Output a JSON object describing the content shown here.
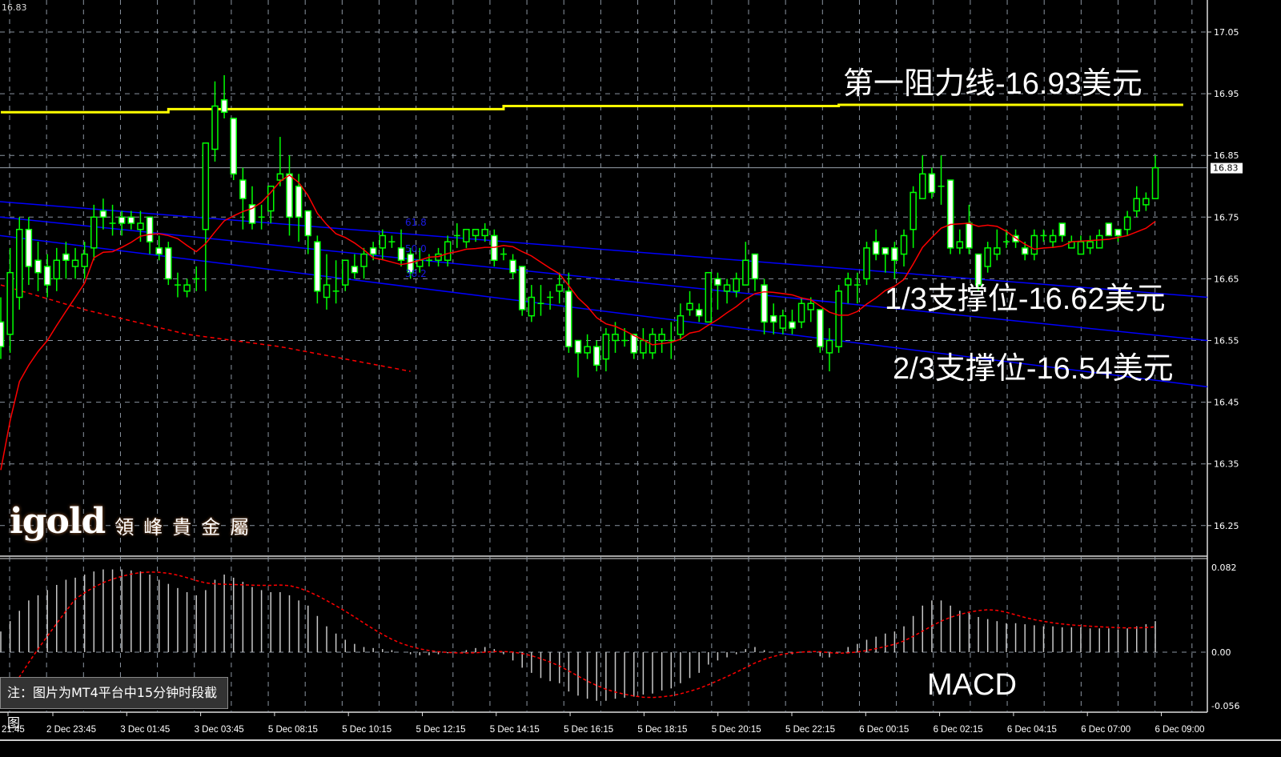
{
  "top_left_price": "16.83",
  "colors": {
    "background": "#000000",
    "candle": "#00ff00",
    "bear_fill": "#ffffff",
    "ma": "#ff0000",
    "channel": "#0000ff",
    "resistance": "#ffff00",
    "grid": "#8a94a0"
  },
  "annotations": {
    "resistance": "第一阻力线-16.93美元",
    "support1": "1/3支撑位-16.62美元",
    "support2": "2/3支撑位-16.54美元",
    "indicator": "MACD"
  },
  "note": "注：图片为MT4平台中15分钟时段截图",
  "logo": {
    "main": "igold",
    "sub": "領峰貴金屬"
  },
  "fib_labels": [
    "61.8",
    "50.0",
    "38.2"
  ],
  "chart_data": {
    "type": "candlestick",
    "symbol_timeframe": "M15",
    "price_axis": {
      "ticks": [
        "17.05",
        "16.95",
        "16.85",
        "16.75",
        "16.65",
        "16.55",
        "16.45",
        "16.35",
        "16.25"
      ],
      "range": [
        16.22,
        17.1
      ]
    },
    "current_price": "16.83",
    "time_labels": [
      "21:45",
      "2 Dec 23:45",
      "3 Dec 01:45",
      "3 Dec 03:45",
      "5 Dec 08:15",
      "5 Dec 10:15",
      "5 Dec 12:15",
      "5 Dec 14:15",
      "5 Dec 16:15",
      "5 Dec 18:15",
      "5 Dec 20:15",
      "5 Dec 22:15",
      "6 Dec 00:15",
      "6 Dec 02:15",
      "6 Dec 04:15",
      "6 Dec 07:00",
      "6 Dec 09:00"
    ],
    "ohlc": [
      [
        16.58,
        16.62,
        16.52,
        16.54
      ],
      [
        16.56,
        16.7,
        16.53,
        16.66
      ],
      [
        16.62,
        16.75,
        16.6,
        16.73
      ],
      [
        16.73,
        16.75,
        16.64,
        16.67
      ],
      [
        16.68,
        16.71,
        16.63,
        16.66
      ],
      [
        16.67,
        16.69,
        16.62,
        16.64
      ],
      [
        16.65,
        16.7,
        16.63,
        16.68
      ],
      [
        16.69,
        16.71,
        16.65,
        16.68
      ],
      [
        16.67,
        16.7,
        16.65,
        16.68
      ],
      [
        16.67,
        16.71,
        16.65,
        16.69
      ],
      [
        16.7,
        16.77,
        16.68,
        16.75
      ],
      [
        16.76,
        16.78,
        16.73,
        16.75
      ],
      [
        16.74,
        16.77,
        16.72,
        16.74
      ],
      [
        16.75,
        16.76,
        16.72,
        16.74
      ],
      [
        16.75,
        16.76,
        16.73,
        16.74
      ],
      [
        16.73,
        16.76,
        16.71,
        16.74
      ],
      [
        16.75,
        16.75,
        16.69,
        16.71
      ],
      [
        16.7,
        16.72,
        16.68,
        16.69
      ],
      [
        16.7,
        16.71,
        16.64,
        16.65
      ],
      [
        16.64,
        16.66,
        16.62,
        16.64
      ],
      [
        16.63,
        16.65,
        16.62,
        16.64
      ],
      [
        16.65,
        16.67,
        16.63,
        16.65
      ],
      [
        16.73,
        16.87,
        16.63,
        16.87
      ],
      [
        16.86,
        16.97,
        16.84,
        16.93
      ],
      [
        16.94,
        16.98,
        16.91,
        16.92
      ],
      [
        16.91,
        16.91,
        16.81,
        16.82
      ],
      [
        16.81,
        16.83,
        16.73,
        16.78
      ],
      [
        16.77,
        16.8,
        16.73,
        16.74
      ],
      [
        16.75,
        16.77,
        16.73,
        16.75
      ],
      [
        16.76,
        16.8,
        16.74,
        16.8
      ],
      [
        16.81,
        16.88,
        16.8,
        16.82
      ],
      [
        16.82,
        16.85,
        16.72,
        16.75
      ],
      [
        16.8,
        16.82,
        16.71,
        16.75
      ],
      [
        16.76,
        16.76,
        16.69,
        16.72
      ],
      [
        16.71,
        16.72,
        16.61,
        16.63
      ],
      [
        16.62,
        16.69,
        16.6,
        16.64
      ],
      [
        16.63,
        16.68,
        16.61,
        16.63
      ],
      [
        16.64,
        16.68,
        16.63,
        16.68
      ],
      [
        16.67,
        16.69,
        16.65,
        16.66
      ],
      [
        16.67,
        16.7,
        16.65,
        16.69
      ],
      [
        16.7,
        16.71,
        16.68,
        16.69
      ],
      [
        16.7,
        16.73,
        16.68,
        16.72
      ],
      [
        16.71,
        16.72,
        16.7,
        16.71
      ],
      [
        16.7,
        16.73,
        16.67,
        16.68
      ],
      [
        16.69,
        16.7,
        16.65,
        16.66
      ],
      [
        16.67,
        16.7,
        16.66,
        16.68
      ],
      [
        16.68,
        16.69,
        16.67,
        16.68
      ],
      [
        16.68,
        16.7,
        16.67,
        16.69
      ],
      [
        16.68,
        16.72,
        16.67,
        16.71
      ],
      [
        16.72,
        16.74,
        16.7,
        16.72
      ],
      [
        16.71,
        16.73,
        16.7,
        16.73
      ],
      [
        16.72,
        16.73,
        16.71,
        16.73
      ],
      [
        16.72,
        16.74,
        16.71,
        16.73
      ],
      [
        16.72,
        16.73,
        16.67,
        16.68
      ],
      [
        16.69,
        16.7,
        16.68,
        16.69
      ],
      [
        16.68,
        16.69,
        16.65,
        16.66
      ],
      [
        16.67,
        16.67,
        16.59,
        16.6
      ],
      [
        16.59,
        16.64,
        16.58,
        16.62
      ],
      [
        16.61,
        16.64,
        16.59,
        16.61
      ],
      [
        16.62,
        16.63,
        16.6,
        16.62
      ],
      [
        16.63,
        16.66,
        16.61,
        16.64
      ],
      [
        16.63,
        16.66,
        16.53,
        16.54
      ],
      [
        16.55,
        16.55,
        16.49,
        16.53
      ],
      [
        16.53,
        16.56,
        16.52,
        16.54
      ],
      [
        16.54,
        16.55,
        16.5,
        16.51
      ],
      [
        16.52,
        16.57,
        16.5,
        16.56
      ],
      [
        16.55,
        16.58,
        16.53,
        16.56
      ],
      [
        16.55,
        16.57,
        16.54,
        16.55
      ],
      [
        16.56,
        16.56,
        16.52,
        16.53
      ],
      [
        16.53,
        16.57,
        16.52,
        16.55
      ],
      [
        16.53,
        16.57,
        16.52,
        16.56
      ],
      [
        16.55,
        16.57,
        16.53,
        16.56
      ],
      [
        16.55,
        16.58,
        16.52,
        16.55
      ],
      [
        16.56,
        16.61,
        16.55,
        16.59
      ],
      [
        16.6,
        16.63,
        16.59,
        16.61
      ],
      [
        16.6,
        16.61,
        16.58,
        16.59
      ],
      [
        16.58,
        16.66,
        16.58,
        16.66
      ],
      [
        16.65,
        16.66,
        16.6,
        16.64
      ],
      [
        16.63,
        16.65,
        16.61,
        16.64
      ],
      [
        16.63,
        16.66,
        16.62,
        16.65
      ],
      [
        16.64,
        16.71,
        16.64,
        16.68
      ],
      [
        16.69,
        16.69,
        16.63,
        16.65
      ],
      [
        16.64,
        16.65,
        16.56,
        16.58
      ],
      [
        16.59,
        16.61,
        16.56,
        16.58
      ],
      [
        16.57,
        16.6,
        16.56,
        16.59
      ],
      [
        16.58,
        16.6,
        16.56,
        16.57
      ],
      [
        16.58,
        16.62,
        16.57,
        16.61
      ],
      [
        16.6,
        16.62,
        16.58,
        16.61
      ],
      [
        16.6,
        16.6,
        16.53,
        16.54
      ],
      [
        16.53,
        16.57,
        16.5,
        16.55
      ],
      [
        16.54,
        16.64,
        16.53,
        16.63
      ],
      [
        16.64,
        16.66,
        16.61,
        16.65
      ],
      [
        16.64,
        16.66,
        16.61,
        16.64
      ],
      [
        16.65,
        16.71,
        16.64,
        16.7
      ],
      [
        16.71,
        16.73,
        16.68,
        16.69
      ],
      [
        16.7,
        16.7,
        16.66,
        16.69
      ],
      [
        16.7,
        16.71,
        16.65,
        16.68
      ],
      [
        16.69,
        16.73,
        16.67,
        16.72
      ],
      [
        16.73,
        16.8,
        16.7,
        16.79
      ],
      [
        16.78,
        16.85,
        16.78,
        16.82
      ],
      [
        16.82,
        16.83,
        16.78,
        16.79
      ],
      [
        16.8,
        16.85,
        16.77,
        16.8
      ],
      [
        16.81,
        16.81,
        16.69,
        16.7
      ],
      [
        16.7,
        16.73,
        16.69,
        16.71
      ],
      [
        16.74,
        16.77,
        16.69,
        16.7
      ],
      [
        16.69,
        16.69,
        16.63,
        16.64
      ],
      [
        16.67,
        16.71,
        16.66,
        16.7
      ],
      [
        16.69,
        16.73,
        16.68,
        16.7
      ],
      [
        16.71,
        16.73,
        16.7,
        16.71
      ],
      [
        16.72,
        16.73,
        16.7,
        16.71
      ],
      [
        16.7,
        16.71,
        16.68,
        16.69
      ],
      [
        16.69,
        16.73,
        16.68,
        16.72
      ],
      [
        16.72,
        16.73,
        16.71,
        16.72
      ],
      [
        16.71,
        16.73,
        16.7,
        16.72
      ],
      [
        16.74,
        16.74,
        16.71,
        16.72
      ],
      [
        16.7,
        16.72,
        16.7,
        16.71
      ],
      [
        16.69,
        16.72,
        16.69,
        16.71
      ],
      [
        16.7,
        16.72,
        16.69,
        16.71
      ],
      [
        16.7,
        16.73,
        16.7,
        16.72
      ],
      [
        16.74,
        16.74,
        16.72,
        16.72
      ],
      [
        16.73,
        16.73,
        16.71,
        16.72
      ],
      [
        16.73,
        16.76,
        16.72,
        16.75
      ],
      [
        16.76,
        16.8,
        16.75,
        16.78
      ],
      [
        16.77,
        16.79,
        16.76,
        16.78
      ],
      [
        16.78,
        16.85,
        16.78,
        16.83
      ]
    ],
    "long_ma_dashed": [
      [
        0,
        16.64
      ],
      [
        9,
        16.6
      ],
      [
        20,
        16.56
      ],
      [
        30,
        16.54
      ],
      [
        44,
        16.5
      ]
    ],
    "resistance_line": [
      [
        0,
        16.92
      ],
      [
        18,
        16.92
      ],
      [
        18,
        16.925
      ],
      [
        54,
        16.925
      ],
      [
        54,
        16.93
      ],
      [
        90,
        16.93
      ],
      [
        90,
        16.932
      ],
      [
        127,
        16.932
      ]
    ],
    "channel_lines": [
      {
        "start": 16.775,
        "end": 16.62
      },
      {
        "start": 16.75,
        "end": 16.55
      },
      {
        "start": 16.72,
        "end": 16.475
      }
    ],
    "fib_levels": [
      {
        "label": "61.8",
        "price": 16.74
      },
      {
        "label": "50.0",
        "price": 16.7
      },
      {
        "label": "38.2",
        "price": 16.66
      }
    ],
    "macd": {
      "axis_ticks": [
        "0.082",
        "0.00",
        "-0.056"
      ],
      "range": [
        -0.063,
        0.089
      ],
      "histogram": [
        0.02,
        0.03,
        0.04,
        0.05,
        0.055,
        0.06,
        0.065,
        0.07,
        0.072,
        0.075,
        0.078,
        0.08,
        0.08,
        0.08,
        0.079,
        0.078,
        0.075,
        0.07,
        0.066,
        0.062,
        0.058,
        0.055,
        0.06,
        0.07,
        0.075,
        0.072,
        0.068,
        0.063,
        0.06,
        0.058,
        0.058,
        0.055,
        0.05,
        0.045,
        0.035,
        0.025,
        0.018,
        0.012,
        0.008,
        0.005,
        0.004,
        0.003,
        0.002,
        0.0,
        -0.002,
        -0.003,
        -0.003,
        -0.002,
        -0.001,
        0.0,
        0.002,
        0.004,
        0.005,
        0.003,
        -0.002,
        -0.008,
        -0.015,
        -0.02,
        -0.025,
        -0.028,
        -0.03,
        -0.038,
        -0.042,
        -0.045,
        -0.047,
        -0.047,
        -0.045,
        -0.044,
        -0.043,
        -0.041,
        -0.04,
        -0.037,
        -0.035,
        -0.03,
        -0.025,
        -0.02,
        -0.012,
        -0.008,
        -0.005,
        -0.002,
        0.003,
        0.005,
        0.002,
        0.0,
        0.0,
        -0.002,
        0.0,
        0.0,
        -0.004,
        -0.005,
        0.0,
        0.005,
        0.008,
        0.012,
        0.015,
        0.018,
        0.02,
        0.025,
        0.035,
        0.045,
        0.05,
        0.05,
        0.045,
        0.04,
        0.038,
        0.034,
        0.032,
        0.03,
        0.028,
        0.028,
        0.027,
        0.026,
        0.025,
        0.025,
        0.024,
        0.024,
        0.024,
        0.023,
        0.023,
        0.023,
        0.022,
        0.023,
        0.025,
        0.027,
        0.03
      ]
    }
  }
}
